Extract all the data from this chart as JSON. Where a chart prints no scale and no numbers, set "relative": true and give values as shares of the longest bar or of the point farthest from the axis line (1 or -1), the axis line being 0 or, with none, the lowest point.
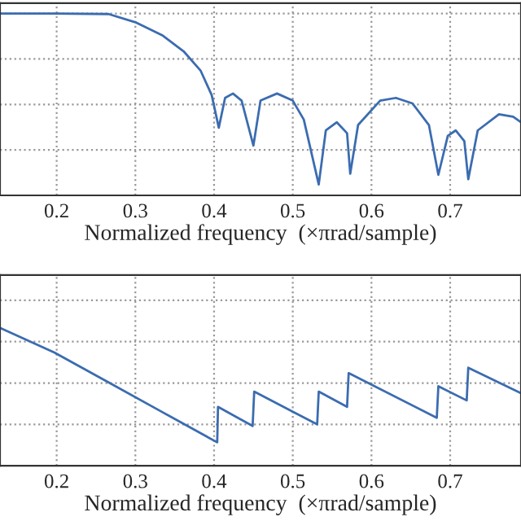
{
  "chart_data": [
    {
      "type": "line",
      "relative": true,
      "xlabel": "Normalized frequency  (×πrad/sample)",
      "xlim": [
        0.128,
        0.79
      ],
      "xticks": [
        0.2,
        0.3,
        0.4,
        0.5,
        0.6,
        0.7
      ],
      "grid": true,
      "tick_labels": "x",
      "series": [
        {
          "color": "#3b6cb0",
          "x": [
            0.128,
            0.197,
            0.266,
            0.3,
            0.335,
            0.362,
            0.383,
            0.397,
            0.406,
            0.414,
            0.424,
            0.435,
            0.45,
            0.459,
            0.48,
            0.5,
            0.514,
            0.533,
            0.542,
            0.556,
            0.569,
            0.573,
            0.583,
            0.611,
            0.631,
            0.652,
            0.673,
            0.685,
            0.697,
            0.707,
            0.718,
            0.723,
            0.735,
            0.762,
            0.78,
            0.79
          ],
          "values": [
            1.0,
            1.0,
            0.997,
            0.952,
            0.878,
            0.789,
            0.685,
            0.551,
            0.372,
            0.536,
            0.56,
            0.521,
            0.274,
            0.521,
            0.56,
            0.521,
            0.417,
            0.06,
            0.357,
            0.402,
            0.342,
            0.119,
            0.387,
            0.521,
            0.536,
            0.506,
            0.387,
            0.113,
            0.327,
            0.357,
            0.298,
            0.089,
            0.357,
            0.446,
            0.432,
            0.402
          ]
        }
      ]
    },
    {
      "type": "line",
      "relative": true,
      "xlabel": "Normalized frequency  (×πrad/sample)",
      "xlim": [
        0.128,
        0.79
      ],
      "xticks": [
        0.2,
        0.3,
        0.4,
        0.5,
        0.6,
        0.7
      ],
      "grid": true,
      "tick_labels": "x",
      "series": [
        {
          "color": "#3b6cb0",
          "x": [
            0.128,
            0.197,
            0.266,
            0.335,
            0.404,
            0.405,
            0.449,
            0.451,
            0.531,
            0.533,
            0.569,
            0.571,
            0.683,
            0.685,
            0.721,
            0.723,
            0.79
          ],
          "values": [
            1.0,
            0.822,
            0.605,
            0.387,
            0.17,
            0.427,
            0.289,
            0.538,
            0.3,
            0.538,
            0.427,
            0.672,
            0.348,
            0.577,
            0.474,
            0.711,
            0.526
          ]
        }
      ]
    }
  ]
}
